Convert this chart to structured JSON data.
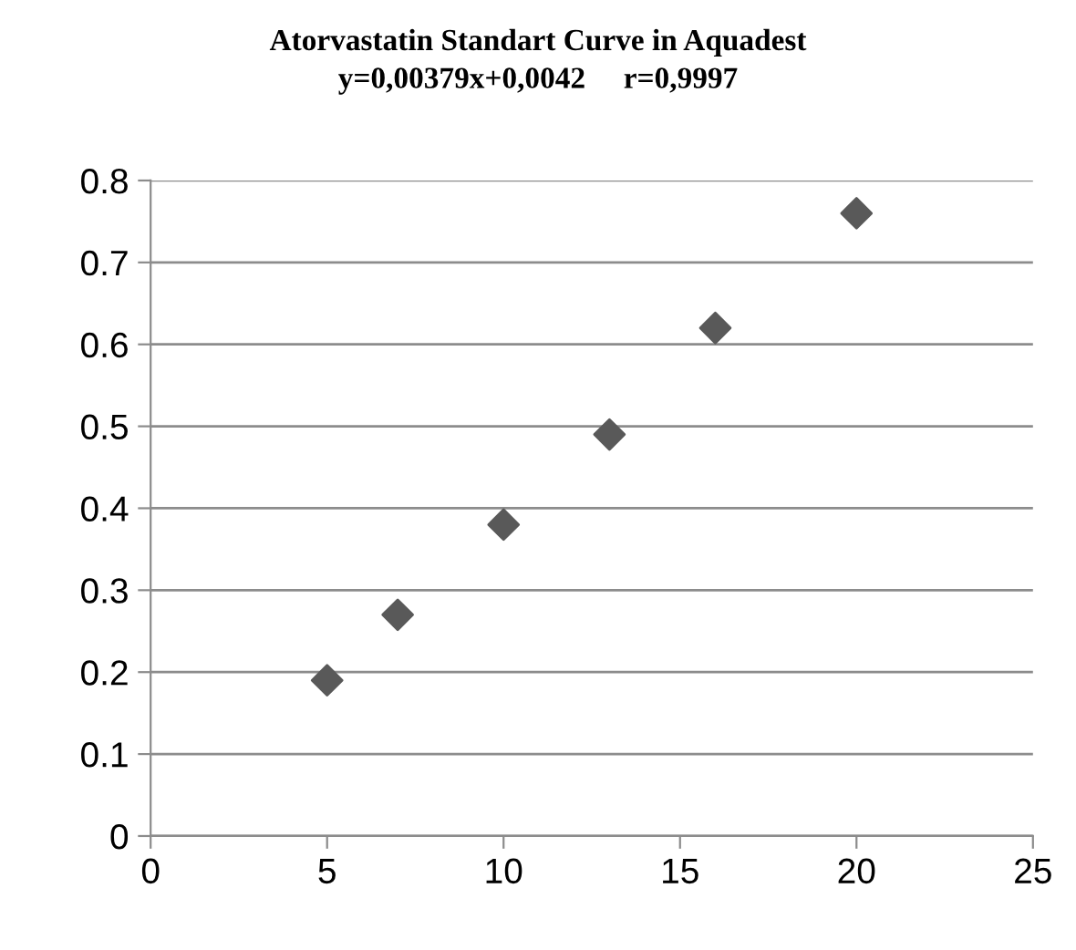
{
  "chart_data": {
    "type": "scatter",
    "title": "Atorvastatin Standart Curve in Aquadest",
    "subtitle": "y=0,00379x+0,0042     r=0,9997",
    "x": [
      5,
      7,
      10,
      13,
      16,
      20
    ],
    "series": [
      {
        "color": "#595959",
        "values": [
          0.19,
          0.27,
          0.38,
          0.49,
          0.62,
          0.76
        ]
      }
    ],
    "xlim": [
      0,
      25
    ],
    "xticks": [
      0,
      5,
      10,
      15,
      20,
      25
    ],
    "ylim": [
      0,
      0.8
    ],
    "yticks": [
      0,
      0.1,
      0.2,
      0.3,
      0.4,
      0.5,
      0.6,
      0.7,
      0.8
    ],
    "grid": "y",
    "marker": "diamond",
    "legend": false
  }
}
